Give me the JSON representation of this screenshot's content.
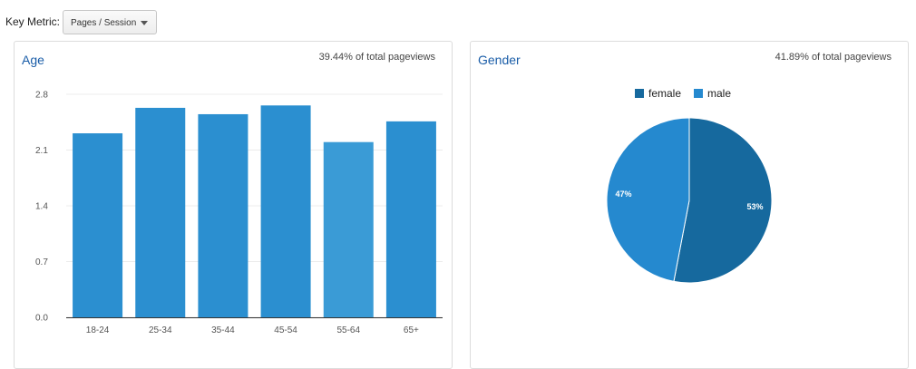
{
  "header": {
    "key_metric_label": "Key Metric:",
    "key_metric_value": "Pages / Session"
  },
  "age_panel": {
    "title": "Age",
    "note": "39.44% of total pageviews"
  },
  "gender_panel": {
    "title": "Gender",
    "note": "41.89% of total pageviews"
  },
  "colors": {
    "bar": "#2b8fd0",
    "bar_light": "#3a9bd6",
    "female": "#16699e",
    "male": "#2589cf"
  },
  "chart_data": [
    {
      "type": "bar",
      "categories": [
        "18-24",
        "25-34",
        "35-44",
        "45-54",
        "55-64",
        "65+"
      ],
      "values": [
        2.31,
        2.63,
        2.55,
        2.66,
        2.2,
        2.46
      ],
      "ylim": [
        0,
        2.8
      ],
      "yticks": [
        "0.0",
        "0.7",
        "1.4",
        "2.1",
        "2.8"
      ],
      "grid": true
    },
    {
      "type": "pie",
      "labels": [
        "female",
        "male"
      ],
      "values": [
        53,
        47
      ],
      "slice_labels": [
        "53%",
        "47%"
      ],
      "legend_position": "top"
    }
  ]
}
